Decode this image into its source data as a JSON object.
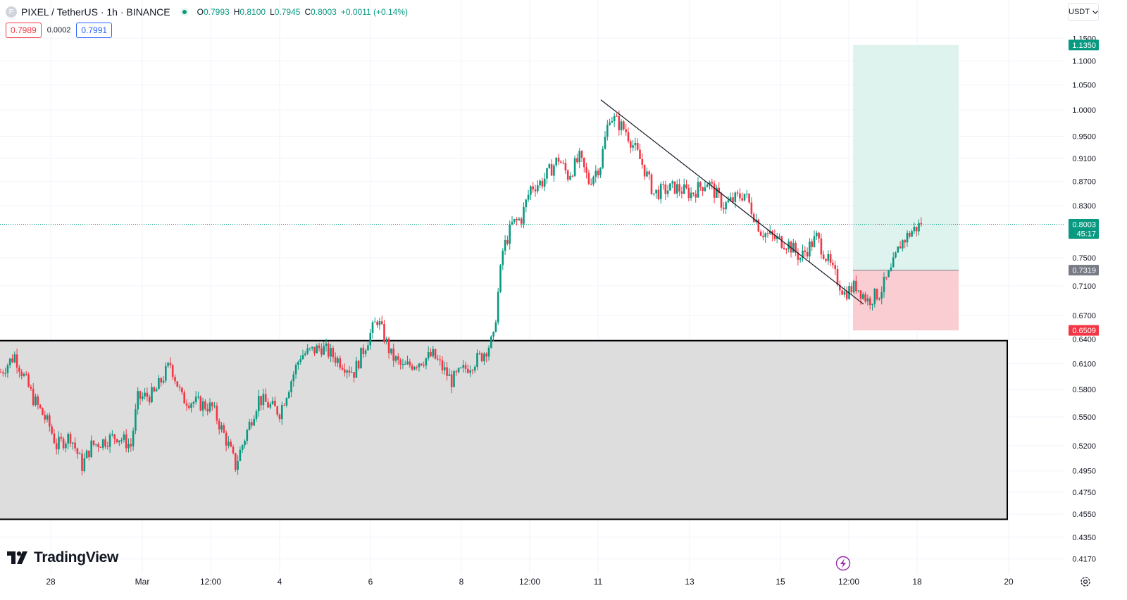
{
  "header": {
    "symbol_badge": "P",
    "symbol_title": "PIXEL / TetherUS · 1h · BINANCE",
    "ohlc": {
      "open_label": "O",
      "open": "0.7993",
      "high_label": "H",
      "high": "0.8100",
      "low_label": "L",
      "low": "0.7945",
      "close_label": "C",
      "close": "0.8003",
      "change": "+0.0011 (+0.14%)"
    },
    "sell_price": "0.7989",
    "spread": "0.0002",
    "buy_price": "0.7991"
  },
  "currency_selector": {
    "label": "USDT",
    "icon": "chevron-down-icon"
  },
  "brand": {
    "name": "TradingView",
    "icon": "tradingview-logo"
  },
  "colors": {
    "up": "#089981",
    "down": "#f23645",
    "current_price": "#089981",
    "target_zone": "#dff3ee",
    "stop_zone": "#f9cdd1",
    "support_zone": "#dddddd",
    "entry_price": "#787b86"
  },
  "chart_data": {
    "type": "candlestick",
    "symbol": "PIXEL/USDT",
    "timeframe": "1h",
    "price_axis": {
      "scale": "log",
      "range": [
        0.405,
        1.16
      ],
      "ticks": [
        "1.1500",
        "1.1000",
        "1.0500",
        "1.0000",
        "0.9500",
        "0.9100",
        "0.8700",
        "0.8300",
        "0.7500",
        "0.7100",
        "0.6700",
        "0.6400",
        "0.6100",
        "0.5800",
        "0.5500",
        "0.5200",
        "0.4950",
        "0.4750",
        "0.4550",
        "0.4350",
        "0.4170"
      ]
    },
    "time_axis": {
      "ticks": [
        "28",
        "Mar",
        "12:00",
        "4",
        "6",
        "8",
        "12:00",
        "11",
        "13",
        "15",
        "12:00",
        "18",
        "20"
      ]
    },
    "price_labels": [
      {
        "value": "1.1350",
        "kind": "take-profit"
      },
      {
        "value": "0.8003",
        "kind": "current",
        "countdown": "45:17"
      },
      {
        "value": "0.7319",
        "kind": "entry"
      },
      {
        "value": "0.6509",
        "kind": "stop-loss"
      }
    ],
    "current_price": 0.8003,
    "position": {
      "side": "long",
      "entry": 0.7319,
      "target": 1.135,
      "stop": 0.6509
    },
    "support_zone": {
      "top": 0.638,
      "bottom": 0.4505
    },
    "trendline": {
      "from": 1.02,
      "to": 0.685
    },
    "price_path": [
      [
        0,
        0.6
      ],
      [
        3.5,
        0.62
      ],
      [
        8,
        0.57
      ],
      [
        12,
        0.54
      ],
      [
        13.5,
        0.52
      ],
      [
        17,
        0.53
      ],
      [
        20,
        0.5
      ],
      [
        22,
        0.52
      ],
      [
        28,
        0.53
      ],
      [
        31.5,
        0.52
      ],
      [
        33,
        0.57
      ],
      [
        37,
        0.575
      ],
      [
        41,
        0.61
      ],
      [
        44,
        0.57
      ],
      [
        51,
        0.56
      ],
      [
        55,
        0.52
      ],
      [
        56.5,
        0.5
      ],
      [
        62,
        0.57
      ],
      [
        67,
        0.555
      ],
      [
        72,
        0.62
      ],
      [
        77,
        0.63
      ],
      [
        85,
        0.6
      ],
      [
        88.5,
        0.64
      ],
      [
        90.5,
        0.665
      ],
      [
        94,
        0.62
      ],
      [
        97,
        0.605
      ],
      [
        104,
        0.62
      ],
      [
        108.5,
        0.59
      ],
      [
        111,
        0.6
      ],
      [
        116,
        0.62
      ],
      [
        119,
        0.64
      ],
      [
        121,
        0.76
      ],
      [
        123,
        0.8
      ],
      [
        125,
        0.81
      ],
      [
        127,
        0.86
      ],
      [
        130,
        0.87
      ],
      [
        134,
        0.91
      ],
      [
        136,
        0.88
      ],
      [
        139,
        0.91
      ],
      [
        141,
        0.87
      ],
      [
        144,
        0.9
      ],
      [
        146,
        0.99
      ],
      [
        150,
        0.96
      ],
      [
        154,
        0.9
      ],
      [
        157,
        0.85
      ],
      [
        162,
        0.86
      ],
      [
        166,
        0.85
      ],
      [
        170,
        0.87
      ],
      [
        174,
        0.83
      ],
      [
        179,
        0.85
      ],
      [
        183,
        0.79
      ],
      [
        186,
        0.78
      ],
      [
        190,
        0.77
      ],
      [
        193,
        0.75
      ],
      [
        197,
        0.78
      ],
      [
        201,
        0.73
      ],
      [
        204,
        0.7
      ],
      [
        207,
        0.71
      ],
      [
        210,
        0.69
      ],
      [
        213,
        0.7
      ],
      [
        216,
        0.73
      ],
      [
        218,
        0.77
      ],
      [
        221,
        0.79
      ],
      [
        223,
        0.8003
      ]
    ]
  }
}
